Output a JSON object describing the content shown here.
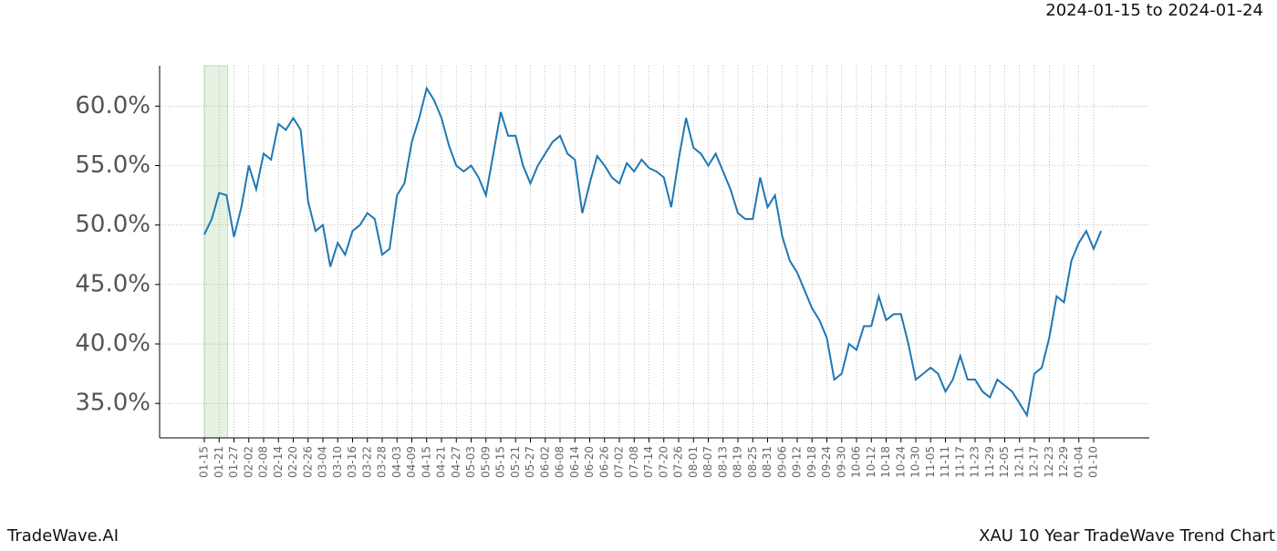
{
  "header": {
    "date_range": "2024-01-15 to 2024-01-24"
  },
  "footer": {
    "brand": "TradeWave.AI",
    "chart_name": "XAU 10 Year TradeWave Trend Chart"
  },
  "chart_data": {
    "type": "line",
    "categories": [
      "01-15",
      null,
      "01-21",
      null,
      "01-27",
      null,
      "02-02",
      null,
      "02-08",
      null,
      "02-14",
      null,
      "02-20",
      null,
      "02-26",
      null,
      "03-04",
      null,
      "03-10",
      null,
      "03-16",
      null,
      "03-22",
      null,
      "03-28",
      null,
      "04-03",
      null,
      "04-09",
      null,
      "04-15",
      null,
      "04-21",
      null,
      "04-27",
      null,
      "05-03",
      null,
      "05-09",
      null,
      "05-15",
      null,
      "05-21",
      null,
      "05-27",
      null,
      "06-02",
      null,
      "06-08",
      null,
      "06-14",
      null,
      "06-20",
      null,
      "06-26",
      null,
      "07-02",
      null,
      "07-08",
      null,
      "07-14",
      null,
      "07-20",
      null,
      "07-26",
      null,
      "08-01",
      null,
      "08-07",
      null,
      "08-13",
      null,
      "08-19",
      null,
      "08-25",
      null,
      "08-31",
      null,
      "09-06",
      null,
      "09-12",
      null,
      "09-18",
      null,
      "09-24",
      null,
      "09-30",
      null,
      "10-06",
      null,
      "10-12",
      null,
      "10-18",
      null,
      "10-24",
      null,
      "10-30",
      null,
      "11-05",
      null,
      "11-11",
      null,
      "11-17",
      null,
      "11-23",
      null,
      "11-29",
      null,
      "12-05",
      null,
      "12-11",
      null,
      "12-17",
      null,
      "12-23",
      null,
      "12-29",
      null,
      "01-04",
      null,
      "01-10",
      null
    ],
    "series": [
      {
        "color": "#1f77b4",
        "values": [
          49.2,
          50.5,
          52.7,
          52.5,
          49.0,
          51.5,
          55.0,
          53.0,
          56.0,
          55.5,
          58.5,
          58.0,
          59.0,
          58.0,
          52.0,
          49.5,
          50.0,
          46.5,
          48.5,
          47.5,
          49.5,
          50.0,
          51.0,
          50.5,
          47.5,
          48.0,
          52.5,
          53.5,
          57.0,
          59.0,
          61.5,
          60.5,
          59.0,
          56.7,
          55.0,
          54.5,
          55.0,
          54.0,
          52.5,
          56.0,
          59.5,
          57.5,
          57.5,
          55.0,
          53.5,
          55.0,
          56.0,
          57.0,
          57.5,
          56.0,
          55.5,
          51.0,
          53.5,
          55.8,
          55.0,
          54.0,
          53.5,
          55.2,
          54.5,
          55.5,
          54.8,
          54.5,
          54.0,
          51.5,
          55.5,
          59.0,
          56.5,
          56.0,
          55.0,
          56.0,
          54.5,
          53.0,
          51.0,
          50.5,
          50.5,
          54.0,
          51.5,
          52.5,
          49.0,
          47.0,
          46.0,
          44.5,
          43.0,
          42.0,
          40.5,
          37.0,
          37.5,
          40.0,
          39.5,
          41.5,
          41.5,
          44.0,
          42.0,
          42.5,
          42.5,
          40.0,
          37.0,
          37.5,
          38.0,
          37.5,
          36.0,
          37.0,
          39.0,
          37.0,
          37.0,
          36.0,
          35.5,
          37.0,
          36.5,
          36.0,
          35.0,
          34.0,
          37.5,
          38.0,
          40.5,
          44.0,
          43.5,
          47.0,
          48.5,
          49.5,
          48.0,
          49.5
        ]
      }
    ],
    "ylim": [
      32.1,
      63.4
    ],
    "yticks": [
      {
        "value": 35,
        "label": "35.0%"
      },
      {
        "value": 40,
        "label": "40.0%"
      },
      {
        "value": 45,
        "label": "45.0%"
      },
      {
        "value": 50,
        "label": "50.0%"
      },
      {
        "value": 55,
        "label": "55.0%"
      },
      {
        "value": 60,
        "label": "60.0%"
      }
    ],
    "highlight_x": [
      0,
      3
    ],
    "highlight_color": "#e5f2e1",
    "grid": true
  }
}
